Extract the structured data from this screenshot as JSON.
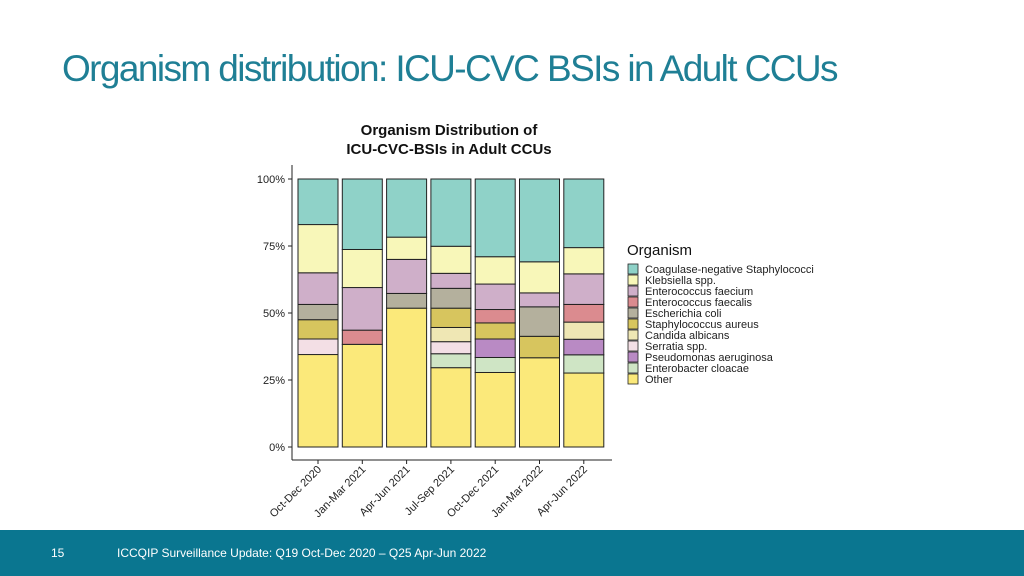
{
  "slide": {
    "title": "Organism distribution: ICU-CVC BSIs in Adult CCUs"
  },
  "footer": {
    "page_number": "15",
    "text": "ICCQIP Surveillance Update: Q19 Oct-Dec 2020 – Q25 Apr-Jun 2022",
    "background": "#0a7690"
  },
  "chart_data": {
    "type": "bar",
    "stacked": true,
    "normalized": true,
    "title_lines": [
      "Organism Distribution of",
      "ICU-CVC-BSIs in Adult CCUs"
    ],
    "xlabel": "",
    "ylabel": "",
    "ylim": [
      0,
      100
    ],
    "y_ticks": [
      {
        "value": 0,
        "label": "0%"
      },
      {
        "value": 25,
        "label": "25%"
      },
      {
        "value": 50,
        "label": "50%"
      },
      {
        "value": 75,
        "label": "75%"
      },
      {
        "value": 100,
        "label": "100%"
      }
    ],
    "grid": false,
    "legend_title": "Organism",
    "legend_position": "right",
    "categories": [
      "Oct-Dec 2020",
      "Jan-Mar 2021",
      "Apr-Jun 2021",
      "Jul-Sep 2021",
      "Oct-Dec 2021",
      "Jan-Mar 2022",
      "Apr-Jun 2022"
    ],
    "series": [
      {
        "name": "Other",
        "color": "#fbe97a",
        "values": [
          34.5,
          38.3,
          51.8,
          29.6,
          27.8,
          33.3,
          27.6
        ]
      },
      {
        "name": "Enterobacter cloacae",
        "color": "#cfe5c5",
        "values": [
          0,
          0,
          0,
          5.2,
          5.6,
          0,
          6.8
        ]
      },
      {
        "name": "Pseudomonas aeruginosa",
        "color": "#b98ac4",
        "values": [
          0,
          0,
          0,
          0,
          6.9,
          0,
          5.8
        ]
      },
      {
        "name": "Serratia spp.",
        "color": "#f3dfe5",
        "values": [
          5.8,
          0,
          0,
          4.5,
          0,
          0,
          0
        ]
      },
      {
        "name": "Candida albicans",
        "color": "#efe7b4",
        "values": [
          0,
          0,
          0,
          5.3,
          0,
          0,
          6.4
        ]
      },
      {
        "name": "Staphylococcus aureus",
        "color": "#d7c55e",
        "values": [
          7.2,
          0,
          0,
          7.2,
          6.0,
          8.0,
          0
        ]
      },
      {
        "name": "Escherichia coli",
        "color": "#b4b09d",
        "values": [
          5.7,
          0,
          5.5,
          7.4,
          0,
          11.0,
          0
        ]
      },
      {
        "name": "Enterococcus faecalis",
        "color": "#db8b8f",
        "values": [
          0,
          5.3,
          0,
          0,
          5.0,
          0,
          6.6
        ]
      },
      {
        "name": "Enterococcus faecium",
        "color": "#cfafc9",
        "values": [
          11.8,
          15.9,
          12.7,
          5.6,
          9.5,
          5.2,
          11.4
        ]
      },
      {
        "name": "Klebsiella spp.",
        "color": "#f8f7b9",
        "values": [
          18.0,
          14.2,
          8.3,
          10.1,
          10.2,
          11.6,
          9.8
        ]
      },
      {
        "name": "Coagulase-negative Staphylococci",
        "color": "#8fd2c8",
        "values": [
          17.0,
          26.3,
          21.7,
          25.1,
          29.0,
          30.9,
          25.6
        ]
      }
    ]
  }
}
